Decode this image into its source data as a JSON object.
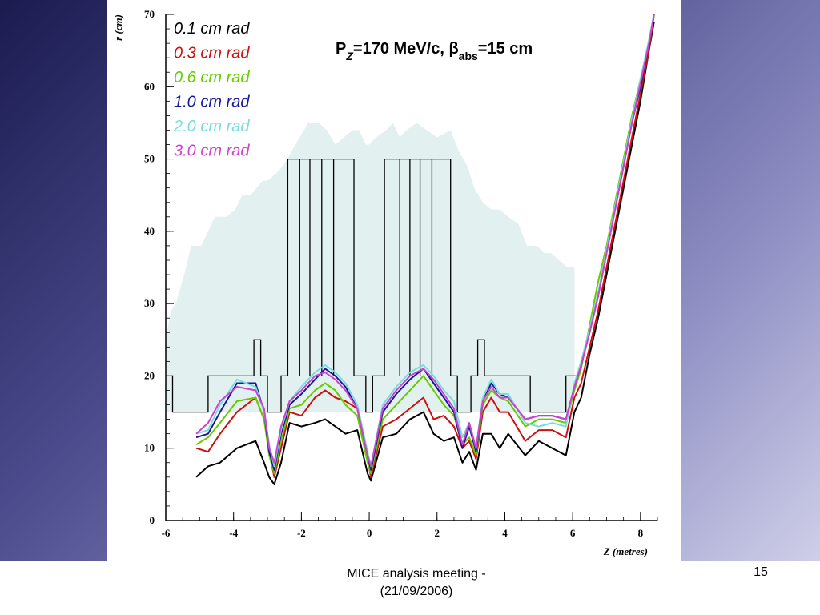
{
  "footer": {
    "meeting_line1": "MICE analysis meeting -",
    "meeting_line2": "(21/09/2006)",
    "page_number": "15"
  },
  "colors": {
    "background_dark": "#1b1b50",
    "background_light": "#d8d8ee",
    "envelope_fill": "#e3f0f0"
  },
  "chart_data": {
    "type": "line",
    "title_parts": [
      "P",
      "Z",
      "=170 MeV/c, ",
      "β",
      "abs",
      "=15 cm"
    ],
    "xlabel": "Z (metres)",
    "ylabel": "r (cm)",
    "xlim": [
      -6,
      8.5
    ],
    "ylim": [
      0,
      70
    ],
    "xticks": [
      -6,
      -4,
      -2,
      0,
      2,
      4,
      6,
      8
    ],
    "yticks": [
      0,
      10,
      20,
      30,
      40,
      50,
      60,
      70
    ],
    "grid": false,
    "legend_position": "top-left",
    "envelope": {
      "x": [
        -6.0,
        -5.85,
        -5.7,
        -5.4,
        -5.25,
        -4.95,
        -4.75,
        -4.55,
        -4.2,
        -3.95,
        -3.75,
        -3.5,
        -3.15,
        -3.0,
        -2.75,
        -2.55,
        -2.3,
        -2.05,
        -1.8,
        -1.5,
        -1.25,
        -1.0,
        -0.75,
        -0.5,
        -0.3,
        -0.1,
        0.0,
        0.2,
        0.5,
        0.7,
        0.9,
        1.1,
        1.4,
        1.7,
        2.0,
        2.4,
        2.65,
        2.9,
        3.1,
        3.35,
        3.6,
        3.85,
        4.1,
        4.4,
        4.65,
        4.95,
        5.15,
        5.35,
        5.6,
        5.85,
        6.05,
        6.05,
        -6.0
      ],
      "y": [
        25.0,
        29.0,
        30.0,
        35.0,
        38.0,
        38.0,
        40.0,
        42.0,
        42.0,
        43.0,
        45.0,
        45.0,
        47.0,
        47.0,
        48.0,
        49.0,
        51.0,
        53.0,
        55.0,
        55.0,
        54.0,
        52.0,
        53.0,
        54.0,
        54.0,
        52.0,
        52.0,
        53.0,
        54.0,
        55.0,
        53.0,
        54.0,
        55.0,
        54.0,
        53.0,
        54.0,
        51.0,
        49.0,
        46.0,
        44.0,
        43.0,
        43.0,
        42.0,
        41.0,
        38.0,
        38.0,
        37.0,
        37.0,
        36.0,
        35.0,
        35.0,
        15.0,
        15.0
      ]
    },
    "magnet_outline": {
      "x": [
        -6.0,
        -5.8,
        -5.8,
        -4.75,
        -4.75,
        -3.4,
        -3.4,
        -3.2,
        -3.2,
        -3.0,
        -3.0,
        -2.6,
        -2.6,
        -2.4,
        -2.4,
        -0.45,
        -0.45,
        -0.1,
        -0.1,
        0.1,
        0.1,
        0.45,
        0.45,
        2.4,
        2.4,
        2.6,
        2.6,
        3.0,
        3.0,
        3.2,
        3.2,
        3.4,
        3.4,
        4.75,
        4.75,
        5.8,
        5.8,
        6.1
      ],
      "y": [
        20.0,
        20.0,
        15.0,
        15.0,
        20.0,
        20.0,
        25.0,
        25.0,
        20.0,
        20.0,
        15.0,
        15.0,
        20.0,
        20.0,
        50.0,
        50.0,
        20.0,
        20.0,
        15.0,
        15.0,
        20.0,
        20.0,
        50.0,
        50.0,
        20.0,
        20.0,
        15.0,
        15.0,
        20.0,
        20.0,
        25.0,
        25.0,
        20.0,
        20.0,
        15.0,
        15.0,
        20.0,
        20.0
      ]
    },
    "coil_dividers": [
      -2.05,
      -1.75,
      -1.4,
      -1.05,
      0.9,
      1.2,
      1.5,
      1.85
    ],
    "x": [
      -5.1,
      -4.75,
      -4.4,
      -3.9,
      -3.35,
      -3.1,
      -2.95,
      -2.8,
      -2.6,
      -2.35,
      -2.0,
      -1.6,
      -1.3,
      -1.0,
      -0.7,
      -0.35,
      -0.05,
      0.05,
      0.4,
      0.8,
      1.2,
      1.6,
      1.9,
      2.2,
      2.5,
      2.75,
      2.95,
      3.15,
      3.35,
      3.6,
      3.85,
      4.1,
      4.6,
      5.0,
      5.4,
      5.8,
      6.05,
      6.25,
      6.5,
      6.75,
      7.0,
      7.25,
      7.5,
      7.75,
      8.0,
      8.25,
      8.4
    ],
    "series": [
      {
        "name": "0.1 cm rad",
        "color": "#000000",
        "values": [
          6.0,
          7.5,
          8.0,
          10.0,
          11.0,
          8.0,
          6.0,
          5.0,
          8.0,
          13.5,
          13.0,
          13.5,
          14.0,
          13.0,
          12.0,
          12.5,
          6.5,
          5.5,
          11.5,
          12.0,
          14.0,
          15.0,
          12.0,
          11.0,
          11.5,
          8.0,
          9.5,
          7.0,
          12.0,
          12.0,
          10.0,
          12.0,
          9.0,
          11.0,
          10.0,
          9.0,
          15.0,
          17.0,
          23.0,
          28.0,
          34.0,
          40.0,
          46.0,
          52.0,
          58.0,
          65.0,
          69.0
        ]
      },
      {
        "name": "0.3 cm rad",
        "color": "#cc1111",
        "values": [
          10.0,
          9.5,
          12.0,
          15.0,
          17.0,
          14.0,
          9.5,
          6.0,
          10.0,
          15.0,
          14.5,
          17.0,
          18.0,
          17.0,
          16.5,
          15.5,
          8.5,
          6.0,
          13.0,
          14.0,
          15.5,
          17.0,
          14.0,
          14.5,
          13.0,
          10.0,
          11.0,
          8.5,
          15.0,
          17.0,
          15.0,
          15.0,
          11.0,
          12.5,
          12.5,
          11.5,
          17.0,
          19.0,
          24.0,
          29.0,
          35.0,
          41.0,
          47.0,
          53.0,
          59.0,
          65.0,
          70.0
        ]
      },
      {
        "name": "0.6 cm rad",
        "color": "#66cc00",
        "values": [
          10.5,
          11.5,
          13.5,
          16.5,
          17.0,
          14.0,
          9.0,
          6.5,
          11.0,
          15.5,
          16.0,
          18.0,
          19.0,
          18.0,
          16.0,
          14.5,
          8.0,
          6.5,
          14.0,
          16.0,
          18.0,
          20.0,
          18.0,
          16.0,
          14.5,
          10.5,
          11.5,
          9.0,
          16.0,
          18.0,
          17.0,
          16.5,
          13.0,
          14.0,
          14.0,
          13.5,
          18.0,
          21.0,
          27.0,
          33.0,
          38.0,
          44.0,
          50.0,
          56.0,
          61.0,
          66.0,
          70.0
        ]
      },
      {
        "name": "1.0 cm rad",
        "color": "#1a1a99",
        "values": [
          11.5,
          12.0,
          15.0,
          19.0,
          19.0,
          15.0,
          9.5,
          7.0,
          12.0,
          16.0,
          17.5,
          19.5,
          21.0,
          20.0,
          18.5,
          15.5,
          9.0,
          7.0,
          15.0,
          17.5,
          19.5,
          21.0,
          19.0,
          17.0,
          15.0,
          10.0,
          13.0,
          9.5,
          16.5,
          19.0,
          17.5,
          17.0,
          14.0,
          14.5,
          14.5,
          14.0,
          18.5,
          21.5,
          26.0,
          31.0,
          37.0,
          43.0,
          49.0,
          55.0,
          60.0,
          66.0,
          70.0
        ]
      },
      {
        "name": "2.0 cm rad",
        "color": "#77dddd",
        "values": [
          12.0,
          12.5,
          16.0,
          19.5,
          18.5,
          15.0,
          10.5,
          7.5,
          12.5,
          16.5,
          18.5,
          20.5,
          21.5,
          20.5,
          19.0,
          16.0,
          9.5,
          7.5,
          16.0,
          18.5,
          20.5,
          21.5,
          20.0,
          18.0,
          16.5,
          11.5,
          13.5,
          10.0,
          17.0,
          19.5,
          17.5,
          17.5,
          13.5,
          13.0,
          13.5,
          13.0,
          19.0,
          22.0,
          26.5,
          31.5,
          37.5,
          43.5,
          49.5,
          55.5,
          61.0,
          66.5,
          70.0
        ]
      },
      {
        "name": "3.0 cm rad",
        "color": "#cc44cc",
        "values": [
          12.0,
          13.5,
          16.5,
          18.5,
          18.0,
          15.5,
          10.0,
          8.0,
          13.0,
          16.5,
          18.0,
          20.0,
          20.5,
          19.5,
          18.0,
          15.5,
          9.0,
          7.5,
          15.5,
          18.0,
          20.0,
          21.0,
          19.5,
          17.5,
          15.5,
          10.5,
          13.5,
          10.0,
          16.5,
          18.5,
          17.0,
          17.0,
          14.0,
          14.5,
          14.5,
          14.0,
          18.5,
          21.5,
          26.0,
          31.0,
          37.0,
          43.0,
          49.0,
          55.0,
          60.5,
          66.0,
          70.0
        ]
      }
    ]
  }
}
